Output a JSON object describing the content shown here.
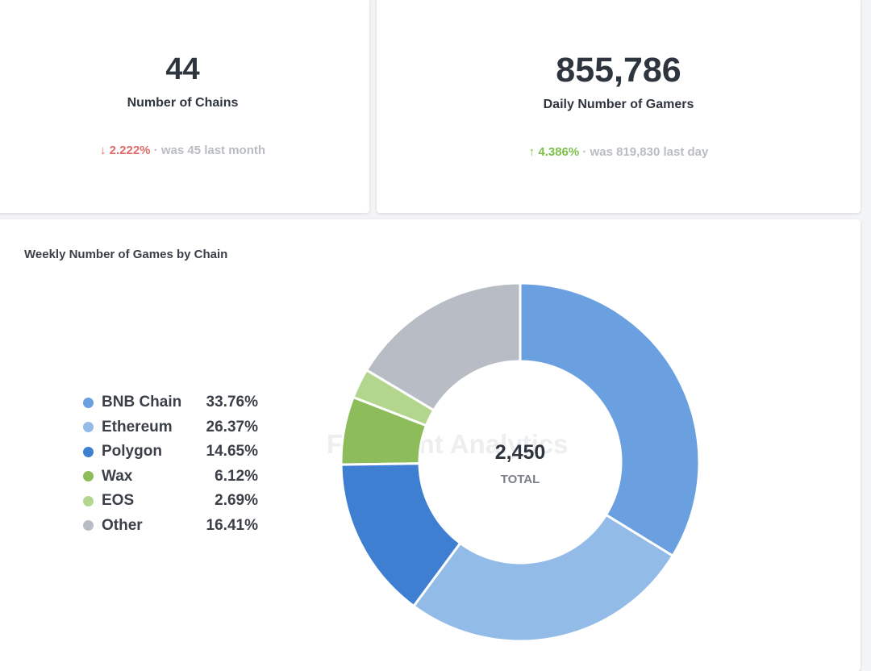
{
  "kpis": [
    {
      "value": "44",
      "label": "Number of Chains",
      "change": "2.222%",
      "direction": "down",
      "arrow": "↓",
      "comparison": "· was 45 last month"
    },
    {
      "value": "855,786",
      "label": "Daily Number of Gamers",
      "change": "4.386%",
      "direction": "up",
      "arrow": "↑",
      "comparison": "· was 819,830 last day"
    }
  ],
  "watermark": "Footprint Analytics",
  "chart_data": {
    "type": "pie",
    "title": "Weekly Number of Games by Chain",
    "donut": true,
    "total": "2,450",
    "total_label": "TOTAL",
    "legend_position": "left",
    "categories": [
      "BNB Chain",
      "Ethereum",
      "Polygon",
      "Wax",
      "EOS",
      "Other"
    ],
    "values": [
      33.76,
      26.37,
      14.65,
      6.12,
      2.69,
      16.41
    ],
    "labels": [
      "33.76%",
      "26.37%",
      "14.65%",
      "6.12%",
      "2.69%",
      "16.41%"
    ],
    "colors": [
      "#6a9fe0",
      "#92bbe8",
      "#3f7fd1",
      "#8dbd5a",
      "#b2d68e",
      "#b8bcc4"
    ]
  }
}
